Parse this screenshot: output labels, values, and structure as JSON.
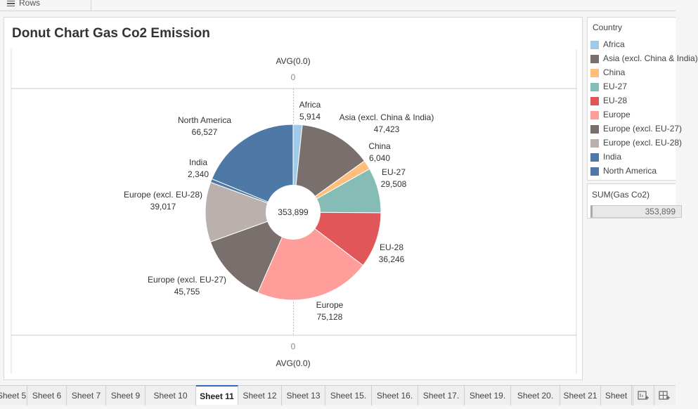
{
  "shelf": {
    "rows_label": "Rows"
  },
  "sheet_title": "Donut Chart Gas Co2 Emission",
  "axis": {
    "top_label": "AVG(0.0)",
    "top_tick": "0",
    "bottom_tick": "0",
    "bottom_label": "AVG(0.0)"
  },
  "chart_data": {
    "type": "pie",
    "title": "Donut Chart Gas Co2 Emission",
    "total_label": "353,899",
    "total": 353899,
    "slices": [
      {
        "category": "Africa",
        "value": 5914,
        "label": "5,914",
        "color": "#a0cbe8"
      },
      {
        "category": "Asia (excl. China & India)",
        "value": 47423,
        "label": "47,423",
        "color": "#79706e"
      },
      {
        "category": "China",
        "value": 6040,
        "label": "6,040",
        "color": "#ffbe7d"
      },
      {
        "category": "EU-27",
        "value": 29508,
        "label": "29,508",
        "color": "#86bcb6"
      },
      {
        "category": "EU-28",
        "value": 36246,
        "label": "36,246",
        "color": "#e15759"
      },
      {
        "category": "Europe",
        "value": 75128,
        "label": "75,128",
        "color": "#ff9d9a"
      },
      {
        "category": "Europe (excl. EU-27)",
        "value": 45755,
        "label": "45,755",
        "color": "#79706e"
      },
      {
        "category": "Europe (excl. EU-28)",
        "value": 39017,
        "label": "39,017",
        "color": "#bab0ac"
      },
      {
        "category": "India",
        "value": 2340,
        "label": "2,340",
        "color": "#4e79a7"
      },
      {
        "category": "North America",
        "value": 66527,
        "label": "66,527",
        "color": "#4e79a7"
      }
    ]
  },
  "legend": {
    "title": "Country",
    "items": [
      {
        "label": "Africa",
        "color": "#a0cbe8"
      },
      {
        "label": "Asia (excl. China & India)",
        "color": "#79706e"
      },
      {
        "label": "China",
        "color": "#ffbe7d"
      },
      {
        "label": "EU-27",
        "color": "#86bcb6"
      },
      {
        "label": "EU-28",
        "color": "#e15759"
      },
      {
        "label": "Europe",
        "color": "#ff9d9a"
      },
      {
        "label": "Europe (excl. EU-27)",
        "color": "#79706e"
      },
      {
        "label": "Europe (excl. EU-28)",
        "color": "#bab0ac"
      },
      {
        "label": "India",
        "color": "#4e79a7"
      },
      {
        "label": "North America",
        "color": "#4e79a7"
      }
    ]
  },
  "size_legend": {
    "title": "SUM(Gas Co2)",
    "value": "353,899"
  },
  "tabs": [
    {
      "label": "Sheet 5",
      "active": false
    },
    {
      "label": "Sheet 6",
      "active": false
    },
    {
      "label": "Sheet 7",
      "active": false
    },
    {
      "label": "Sheet 9",
      "active": false
    },
    {
      "label": "Sheet 10",
      "active": false
    },
    {
      "label": "Sheet 11",
      "active": true
    },
    {
      "label": "Sheet 12",
      "active": false
    },
    {
      "label": "Sheet 13",
      "active": false
    },
    {
      "label": "Sheet 15.",
      "active": false
    },
    {
      "label": "Sheet 16.",
      "active": false
    },
    {
      "label": "Sheet 17.",
      "active": false
    },
    {
      "label": "Sheet 19.",
      "active": false
    },
    {
      "label": "Sheet 20.",
      "active": false
    },
    {
      "label": "Sheet 21",
      "active": false
    },
    {
      "label": "Sheet",
      "active": false
    }
  ],
  "icons": {
    "rows": "list-icon",
    "new_worksheet": "new-worksheet-icon",
    "new_dashboard": "new-dashboard-icon"
  }
}
